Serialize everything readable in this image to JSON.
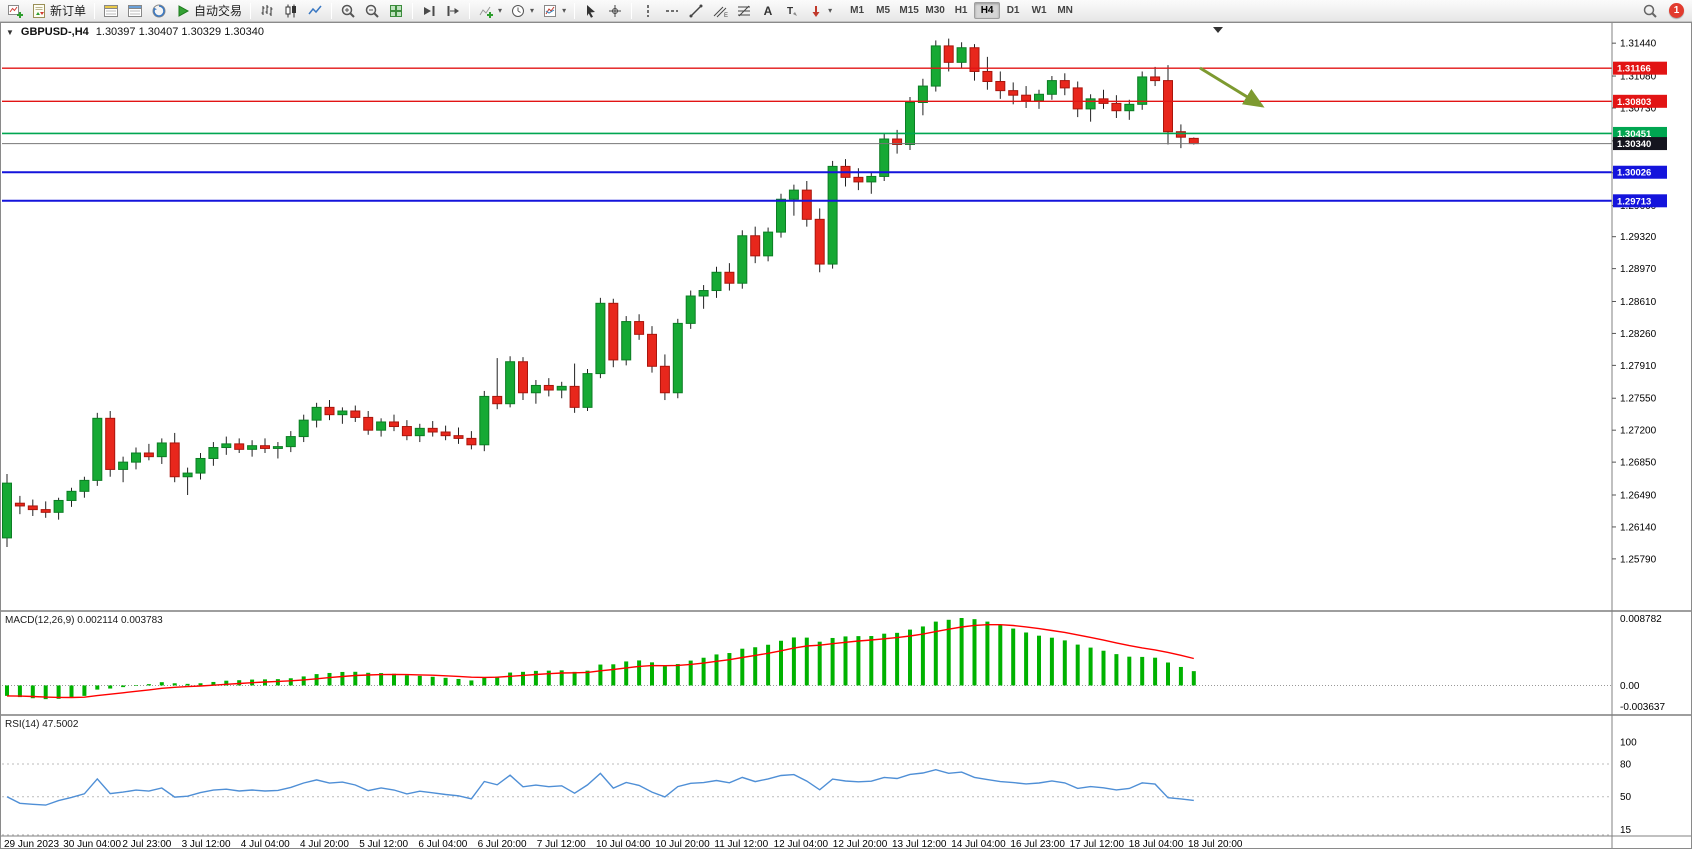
{
  "toolbar": {
    "items": [
      {
        "type": "button",
        "name": "new-chart",
        "icon": "chart-plus"
      },
      {
        "type": "button",
        "name": "new-order",
        "icon": "order-ticket",
        "label": "新订单"
      },
      {
        "type": "sep"
      },
      {
        "type": "button",
        "name": "market-watch",
        "icon": "market-watch"
      },
      {
        "type": "button",
        "name": "data-window",
        "icon": "data-window"
      },
      {
        "type": "button",
        "name": "navigator",
        "icon": "navigator"
      },
      {
        "type": "button",
        "name": "autotrading",
        "icon": "play",
        "label": "自动交易"
      },
      {
        "type": "sep"
      },
      {
        "type": "button",
        "name": "bar-chart",
        "icon": "bars"
      },
      {
        "type": "button",
        "name": "candlestick-chart",
        "icon": "candles"
      },
      {
        "type": "button",
        "name": "line-chart",
        "icon": "line"
      },
      {
        "type": "sep"
      },
      {
        "type": "button",
        "name": "zoom-in",
        "icon": "zoom-in"
      },
      {
        "type": "button",
        "name": "zoom-out",
        "icon": "zoom-out"
      },
      {
        "type": "button",
        "name": "tile-windows",
        "icon": "tile"
      },
      {
        "type": "sep"
      },
      {
        "type": "button",
        "name": "auto-scroll",
        "icon": "auto-scroll"
      },
      {
        "type": "button",
        "name": "chart-shift",
        "icon": "chart-shift"
      },
      {
        "type": "sep"
      },
      {
        "type": "button",
        "name": "indicators",
        "icon": "indicators",
        "dropdown": true
      },
      {
        "type": "button",
        "name": "periods",
        "icon": "clock",
        "dropdown": true
      },
      {
        "type": "button",
        "name": "templates",
        "icon": "template",
        "dropdown": true
      },
      {
        "type": "sep"
      },
      {
        "type": "button",
        "name": "cursor",
        "icon": "cursor"
      },
      {
        "type": "button",
        "name": "crosshair",
        "icon": "crosshair"
      },
      {
        "type": "sep"
      },
      {
        "type": "button",
        "name": "vertical-line",
        "icon": "vline"
      },
      {
        "type": "button",
        "name": "horizontal-line",
        "icon": "hline"
      },
      {
        "type": "button",
        "name": "trendline",
        "icon": "trendline"
      },
      {
        "type": "button",
        "name": "equidistant-channel",
        "icon": "channel"
      },
      {
        "type": "button",
        "name": "fibonacci",
        "icon": "fibo"
      },
      {
        "type": "button",
        "name": "text",
        "icon": "text"
      },
      {
        "type": "button",
        "name": "text-label",
        "icon": "label"
      },
      {
        "type": "button",
        "name": "arrow-objects",
        "icon": "arrows",
        "dropdown": true
      }
    ],
    "timeframes": [
      {
        "label": "M1",
        "active": false
      },
      {
        "label": "M5",
        "active": false
      },
      {
        "label": "M15",
        "active": false
      },
      {
        "label": "M30",
        "active": false
      },
      {
        "label": "H1",
        "active": false
      },
      {
        "label": "H4",
        "active": true
      },
      {
        "label": "D1",
        "active": false
      },
      {
        "label": "W1",
        "active": false
      },
      {
        "label": "MN",
        "active": false
      }
    ],
    "notification_count": "1"
  },
  "chart": {
    "title": "GBPUSD-,H4",
    "ohlc": "1.30397 1.30407 1.30329 1.30340"
  },
  "chart_data": {
    "type": "candlestick",
    "symbol": "GBPUSD-",
    "timeframe": "H4",
    "ohlc_display": {
      "open": "1.30397",
      "high": "1.30407",
      "low": "1.30329",
      "close": "1.30340"
    },
    "price_axis_labels": [
      "1.31440",
      "1.31080",
      "1.30730",
      "1.30370",
      "1.30020",
      "1.29660",
      "1.29320",
      "1.28970",
      "1.28610",
      "1.28260",
      "1.27910",
      "1.27550",
      "1.27200",
      "1.26850",
      "1.26490",
      "1.26140",
      "1.25790"
    ],
    "time_labels": [
      "29 Jun 2023",
      "30 Jun 04:00",
      "2 Jul 23:00",
      "3 Jul 12:00",
      "4 Jul 04:00",
      "4 Jul 20:00",
      "5 Jul 12:00",
      "6 Jul 04:00",
      "6 Jul 20:00",
      "7 Jul 12:00",
      "10 Jul 04:00",
      "10 Jul 20:00",
      "11 Jul 12:00",
      "12 Jul 04:00",
      "12 Jul 20:00",
      "13 Jul 12:00",
      "14 Jul 04:00",
      "16 Jul 23:00",
      "17 Jul 12:00",
      "18 Jul 04:00",
      "18 Jul 20:00"
    ],
    "candles": [
      [
        1.2602,
        1.2672,
        1.2592,
        1.2662
      ],
      [
        1.264,
        1.2648,
        1.2628,
        1.2637
      ],
      [
        1.2637,
        1.2644,
        1.2626,
        1.2633
      ],
      [
        1.2633,
        1.2642,
        1.2624,
        1.263
      ],
      [
        1.263,
        1.2646,
        1.2622,
        1.2643
      ],
      [
        1.2643,
        1.2657,
        1.2636,
        1.2653
      ],
      [
        1.2653,
        1.2669,
        1.2646,
        1.2665
      ],
      [
        1.2665,
        1.2739,
        1.2659,
        1.2733
      ],
      [
        1.2733,
        1.2741,
        1.2669,
        1.2677
      ],
      [
        1.2677,
        1.2691,
        1.2663,
        1.2685
      ],
      [
        1.2685,
        1.2701,
        1.2677,
        1.2695
      ],
      [
        1.2695,
        1.2705,
        1.2687,
        1.2691
      ],
      [
        1.2691,
        1.2711,
        1.2683,
        1.2706
      ],
      [
        1.2706,
        1.2717,
        1.2663,
        1.2669
      ],
      [
        1.2669,
        1.2679,
        1.2649,
        1.2673
      ],
      [
        1.2673,
        1.2695,
        1.2666,
        1.2689
      ],
      [
        1.2689,
        1.2707,
        1.2681,
        1.2701
      ],
      [
        1.2701,
        1.2713,
        1.2693,
        1.2705
      ],
      [
        1.2705,
        1.2711,
        1.2695,
        1.2699
      ],
      [
        1.2699,
        1.2709,
        1.2691,
        1.2703
      ],
      [
        1.2703,
        1.2711,
        1.2695,
        1.27
      ],
      [
        1.27,
        1.2707,
        1.2689,
        1.2702
      ],
      [
        1.2702,
        1.2719,
        1.2696,
        1.2713
      ],
      [
        1.2713,
        1.2737,
        1.2707,
        1.2731
      ],
      [
        1.2731,
        1.275,
        1.2723,
        1.2745
      ],
      [
        1.2745,
        1.2753,
        1.2731,
        1.2737
      ],
      [
        1.2737,
        1.2745,
        1.2727,
        1.2741
      ],
      [
        1.2741,
        1.2747,
        1.2729,
        1.2734
      ],
      [
        1.2734,
        1.2741,
        1.2715,
        1.272
      ],
      [
        1.272,
        1.2733,
        1.2713,
        1.2729
      ],
      [
        1.2729,
        1.2737,
        1.2719,
        1.2724
      ],
      [
        1.2724,
        1.2731,
        1.2709,
        1.2714
      ],
      [
        1.2714,
        1.2727,
        1.2707,
        1.2722
      ],
      [
        1.2722,
        1.273,
        1.2713,
        1.2718
      ],
      [
        1.2718,
        1.2725,
        1.2709,
        1.2714
      ],
      [
        1.2714,
        1.2723,
        1.2705,
        1.2711
      ],
      [
        1.2711,
        1.2719,
        1.2699,
        1.2704
      ],
      [
        1.2704,
        1.2763,
        1.2697,
        1.2757
      ],
      [
        1.2757,
        1.2799,
        1.2743,
        1.2749
      ],
      [
        1.2749,
        1.2801,
        1.2745,
        1.2795
      ],
      [
        1.2795,
        1.28,
        1.2753,
        1.2761
      ],
      [
        1.2761,
        1.2775,
        1.2749,
        1.2769
      ],
      [
        1.2769,
        1.2777,
        1.2757,
        1.2764
      ],
      [
        1.2764,
        1.2773,
        1.2755,
        1.2768
      ],
      [
        1.2768,
        1.2793,
        1.2739,
        1.2745
      ],
      [
        1.2745,
        1.2787,
        1.2741,
        1.2782
      ],
      [
        1.2782,
        1.2865,
        1.2777,
        1.2859
      ],
      [
        1.2859,
        1.2864,
        1.2789,
        1.2797
      ],
      [
        1.2797,
        1.2845,
        1.2791,
        1.2839
      ],
      [
        1.2839,
        1.2847,
        1.2819,
        1.2825
      ],
      [
        1.2825,
        1.2834,
        1.2783,
        1.279
      ],
      [
        1.279,
        1.2803,
        1.2753,
        1.2761
      ],
      [
        1.2761,
        1.2842,
        1.2755,
        1.2837
      ],
      [
        1.2837,
        1.2873,
        1.2831,
        1.2867
      ],
      [
        1.2867,
        1.2879,
        1.2853,
        1.2873
      ],
      [
        1.2873,
        1.2899,
        1.2865,
        1.2893
      ],
      [
        1.2893,
        1.2903,
        1.2873,
        1.2881
      ],
      [
        1.2881,
        1.2939,
        1.2875,
        1.2933
      ],
      [
        1.2933,
        1.2943,
        1.2903,
        1.2911
      ],
      [
        1.2911,
        1.2942,
        1.2905,
        1.2937
      ],
      [
        1.2937,
        1.2979,
        1.2931,
        1.2973
      ],
      [
        1.2973,
        1.2989,
        1.2955,
        1.2983
      ],
      [
        1.2983,
        1.2993,
        1.2943,
        1.2951
      ],
      [
        1.2951,
        1.2963,
        1.2893,
        1.2902
      ],
      [
        1.2902,
        1.3015,
        1.2897,
        1.3009
      ],
      [
        1.3009,
        1.3017,
        1.2987,
        1.2997
      ],
      [
        1.2997,
        1.3007,
        1.2983,
        1.2992
      ],
      [
        1.2992,
        1.3003,
        1.2979,
        1.2998
      ],
      [
        1.2998,
        1.3045,
        1.2993,
        1.3039
      ],
      [
        1.3039,
        1.3049,
        1.3023,
        1.3033
      ],
      [
        1.3033,
        1.3085,
        1.3027,
        1.3079
      ],
      [
        1.3079,
        1.3105,
        1.3065,
        1.3097
      ],
      [
        1.3097,
        1.3147,
        1.3091,
        1.3141
      ],
      [
        1.3141,
        1.3149,
        1.3113,
        1.3123
      ],
      [
        1.3123,
        1.3145,
        1.3117,
        1.3139
      ],
      [
        1.3139,
        1.3143,
        1.3103,
        1.3113
      ],
      [
        1.3113,
        1.3129,
        1.3093,
        1.3102
      ],
      [
        1.3102,
        1.3113,
        1.3083,
        1.3092
      ],
      [
        1.3092,
        1.3101,
        1.3077,
        1.3087
      ],
      [
        1.3087,
        1.3097,
        1.3073,
        1.3081
      ],
      [
        1.3081,
        1.3093,
        1.3072,
        1.3088
      ],
      [
        1.3088,
        1.3108,
        1.3082,
        1.3103
      ],
      [
        1.3103,
        1.3111,
        1.3087,
        1.3095
      ],
      [
        1.3095,
        1.3102,
        1.3063,
        1.3072
      ],
      [
        1.3072,
        1.3088,
        1.3058,
        1.3083
      ],
      [
        1.3083,
        1.3093,
        1.3072,
        1.3078
      ],
      [
        1.3078,
        1.3087,
        1.3062,
        1.307
      ],
      [
        1.307,
        1.3082,
        1.306,
        1.3077
      ],
      [
        1.3077,
        1.3113,
        1.3071,
        1.3107
      ],
      [
        1.3107,
        1.3118,
        1.3097,
        1.3103
      ],
      [
        1.3103,
        1.312,
        1.3033,
        1.3047
      ],
      [
        1.3047,
        1.3055,
        1.3029,
        1.3041
      ],
      [
        1.30397,
        1.30407,
        1.30329,
        1.3034
      ]
    ],
    "hlines": [
      {
        "price": 1.31166,
        "label": "1.31166",
        "color": "#e21414",
        "kind": "resistance"
      },
      {
        "price": 1.30803,
        "label": "1.30803",
        "color": "#e21414",
        "kind": "resistance"
      },
      {
        "price": 1.30451,
        "label": "1.30451",
        "color": "#00a651",
        "kind": "level"
      },
      {
        "price": 1.3034,
        "label": "1.30340",
        "color": "#3c3c46",
        "kind": "current"
      },
      {
        "price": 1.30026,
        "label": "1.30026",
        "color": "#1414dc",
        "kind": "support"
      },
      {
        "price": 1.29713,
        "label": "1.29713",
        "color": "#1414dc",
        "kind": "support"
      }
    ],
    "colors": {
      "up": "#16a934",
      "up_border": "#0c7d24",
      "down": "#e8271c",
      "down_border": "#aa150c",
      "wick": "#222222",
      "macd_hist": "#00b200",
      "macd_signal": "#ff0000",
      "rsi_line": "#4f8fd6",
      "level_line": "#bbbbbb",
      "arrow": "#7d9a30"
    },
    "macd": {
      "label": "MACD(12,26,9) 0.002114 0.003783",
      "fast": 12,
      "slow": 26,
      "signal": 9,
      "axis_labels": [
        "0.008782",
        "0.00",
        "-0.003637"
      ]
    },
    "rsi": {
      "label": "RSI(14) 47.5002",
      "period": 14,
      "levels": [
        80,
        50,
        15
      ],
      "axis_labels": [
        "100",
        "80",
        "50",
        "15"
      ]
    }
  }
}
